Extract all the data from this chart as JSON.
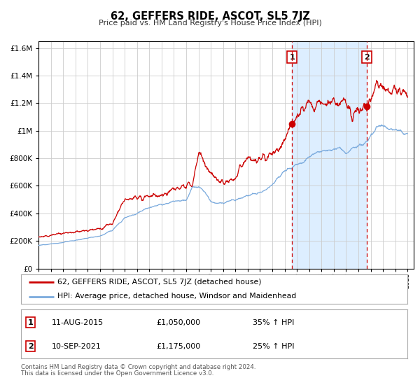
{
  "title": "62, GEFFERS RIDE, ASCOT, SL5 7JZ",
  "subtitle": "Price paid vs. HM Land Registry's House Price Index (HPI)",
  "footer1": "Contains HM Land Registry data © Crown copyright and database right 2024.",
  "footer2": "This data is licensed under the Open Government Licence v3.0.",
  "legend_line1": "62, GEFFERS RIDE, ASCOT, SL5 7JZ (detached house)",
  "legend_line2": "HPI: Average price, detached house, Windsor and Maidenhead",
  "sale1_date": "11-AUG-2015",
  "sale1_price": "£1,050,000",
  "sale1_hpi": "35% ↑ HPI",
  "sale2_date": "10-SEP-2021",
  "sale2_price": "£1,175,000",
  "sale2_hpi": "25% ↑ HPI",
  "sale1_x": 2015.6,
  "sale1_y": 1050000,
  "sale2_x": 2021.7,
  "sale2_y": 1175000,
  "vline1_x": 2015.6,
  "vline2_x": 2021.7,
  "ylim": [
    0,
    1650000
  ],
  "xlim_start": 1995.0,
  "xlim_end": 2025.5,
  "red_color": "#cc0000",
  "blue_color": "#7aaadd",
  "shade_color": "#ddeeff",
  "grid_color": "#cccccc",
  "bg_color": "#ffffff"
}
